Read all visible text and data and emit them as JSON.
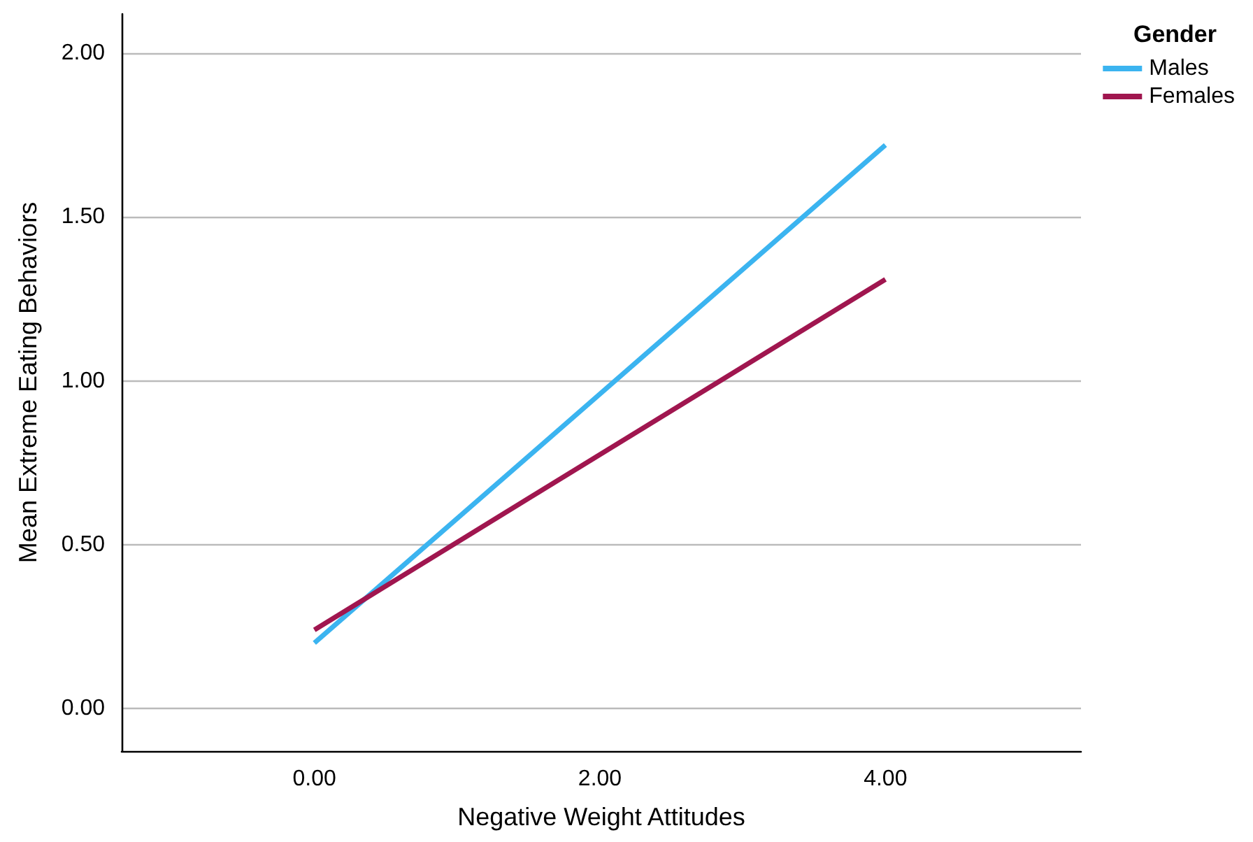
{
  "chart_data": {
    "type": "line",
    "xlabel": "Negative Weight Attitudes",
    "ylabel": "Mean Extreme Eating Behaviors",
    "legend_title": "Gender",
    "x": [
      0,
      4
    ],
    "series": [
      {
        "name": "Males",
        "color": "#3bb4f0",
        "values": [
          0.2,
          1.72
        ]
      },
      {
        "name": "Females",
        "color": "#a0164f",
        "values": [
          0.24,
          1.31
        ]
      }
    ],
    "xlim": [
      -1.35,
      5.37
    ],
    "xticks": [
      {
        "value": 0,
        "label": "0.00"
      },
      {
        "value": 2,
        "label": "2.00"
      },
      {
        "value": 4,
        "label": "4.00"
      }
    ],
    "ylim": [
      -0.13,
      2.12
    ],
    "yticks": [
      {
        "value": 0,
        "label": "0.00"
      },
      {
        "value": 0.5,
        "label": "0.50"
      },
      {
        "value": 1,
        "label": "1.00"
      },
      {
        "value": 1.5,
        "label": "1.50"
      },
      {
        "value": 2,
        "label": "2.00"
      }
    ],
    "grid": "y",
    "legend": "top right",
    "marker": "none",
    "line_style": "solid"
  }
}
